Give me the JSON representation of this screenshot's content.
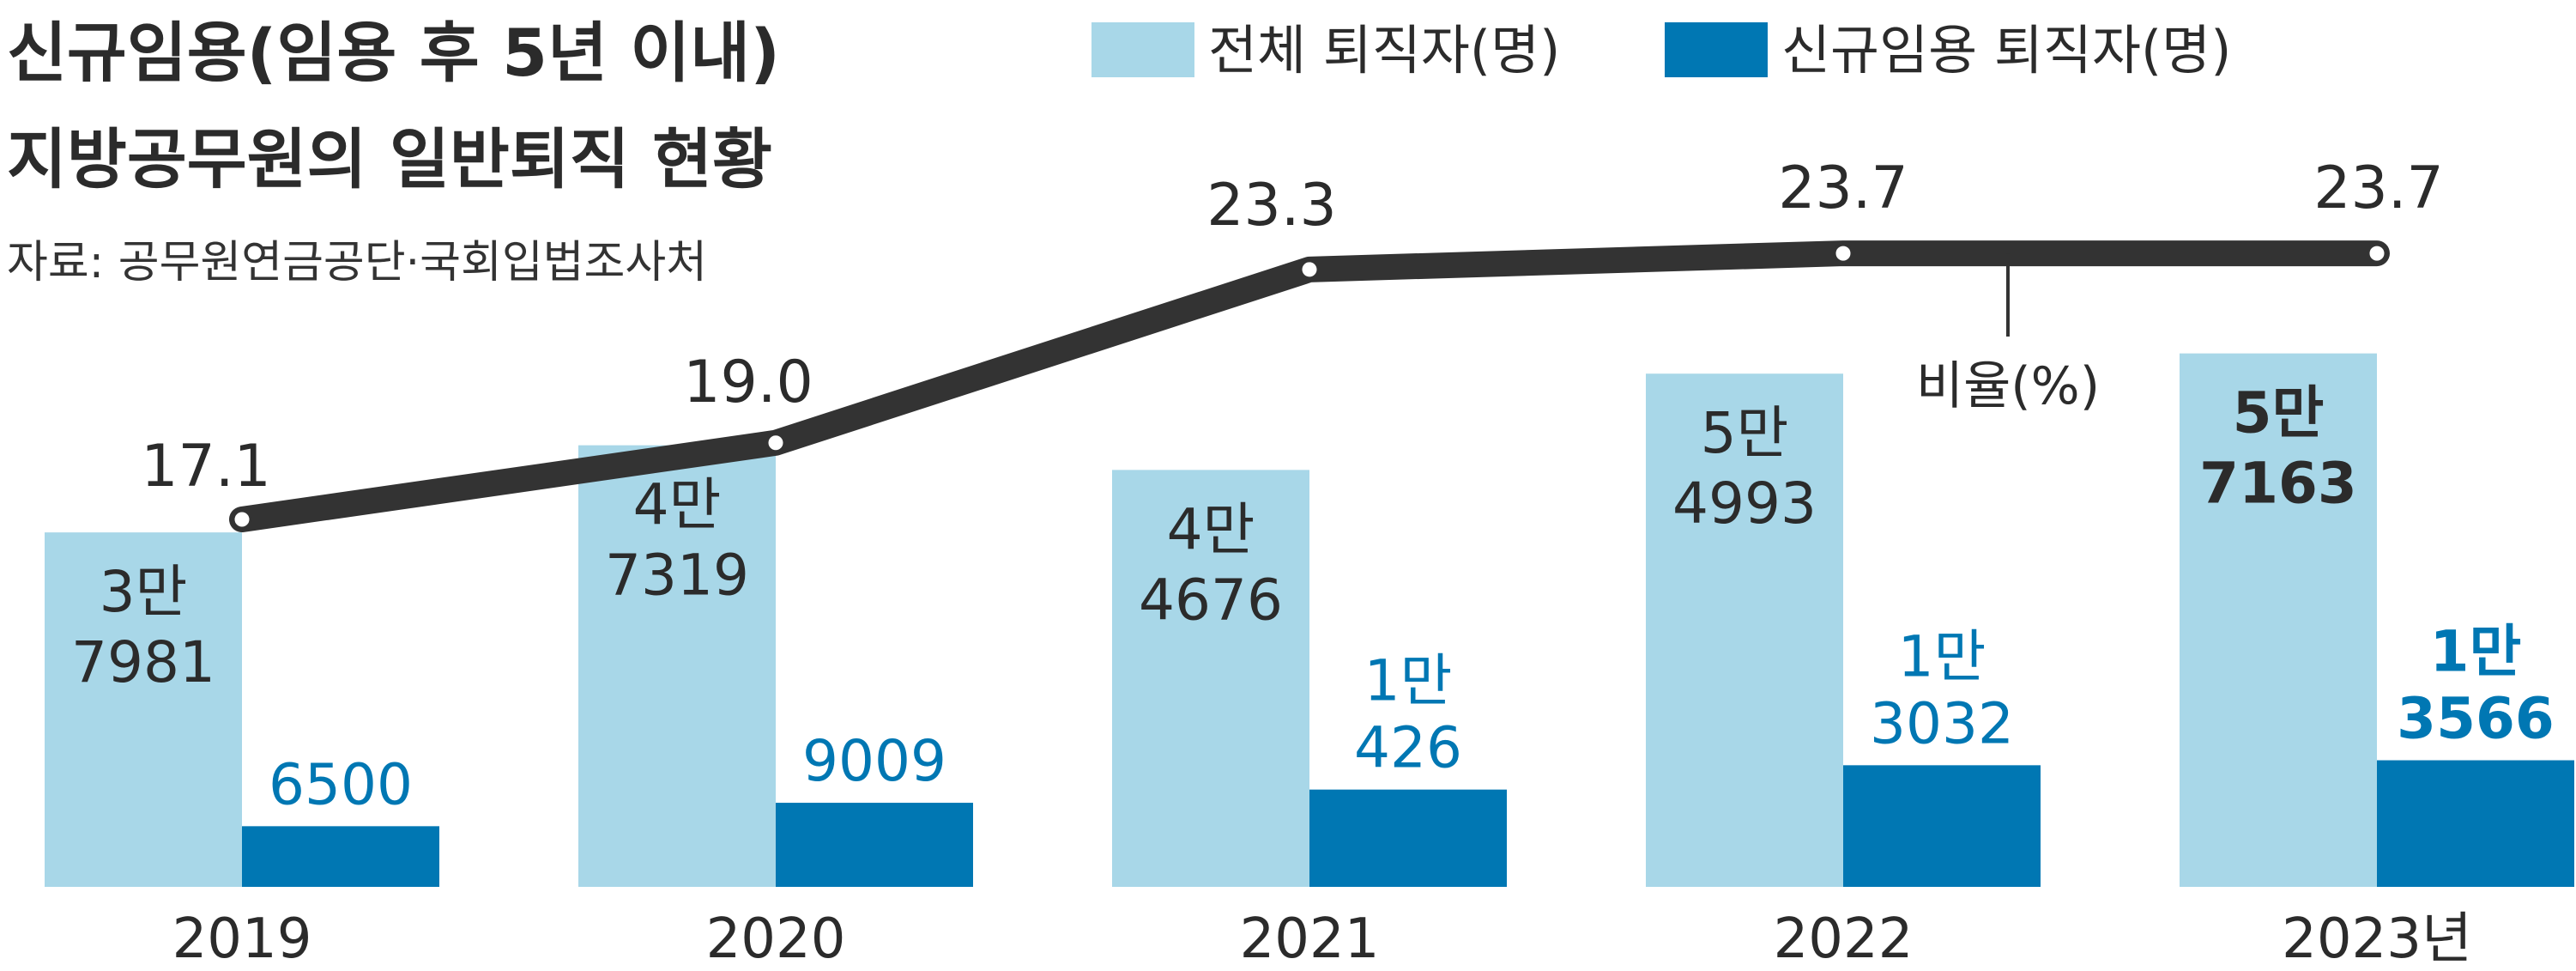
{
  "title_line1": "신규임용(임용 후 5년 이내)",
  "title_line2": "지방공무원의 일반퇴직 현황",
  "source": "자료: 공무원연금공단·국회입법조사처",
  "colors": {
    "total": "#a8d7e8",
    "new": "#0077b3",
    "line": "#333333",
    "text": "#2b2b2b"
  },
  "chart_data": {
    "type": "bar",
    "categories": [
      "2019",
      "2020",
      "2021",
      "2022",
      "2023년"
    ],
    "series": [
      {
        "name": "전체 퇴직자(명)",
        "values": [
          37981,
          47319,
          44676,
          54993,
          57163
        ],
        "labels": [
          [
            "3만",
            "7981"
          ],
          [
            "4만",
            "7319"
          ],
          [
            "4만",
            "4676"
          ],
          [
            "5만",
            "4993"
          ],
          [
            "5만",
            "7163"
          ]
        ]
      },
      {
        "name": "신규임용 퇴직자(명)",
        "values": [
          6500,
          9009,
          10426,
          13032,
          13566
        ],
        "labels": [
          [
            "6500"
          ],
          [
            "9009"
          ],
          [
            "1만",
            "426"
          ],
          [
            "1만",
            "3032"
          ],
          [
            "1만",
            "3566"
          ]
        ]
      }
    ],
    "line_series": {
      "name": "비율(%)",
      "values": [
        17.1,
        19.0,
        23.3,
        23.7,
        23.7
      ],
      "labels": [
        "17.1",
        "19.0",
        "23.3",
        "23.7",
        "23.7"
      ]
    },
    "legend_position": "top-right",
    "grid": false
  }
}
